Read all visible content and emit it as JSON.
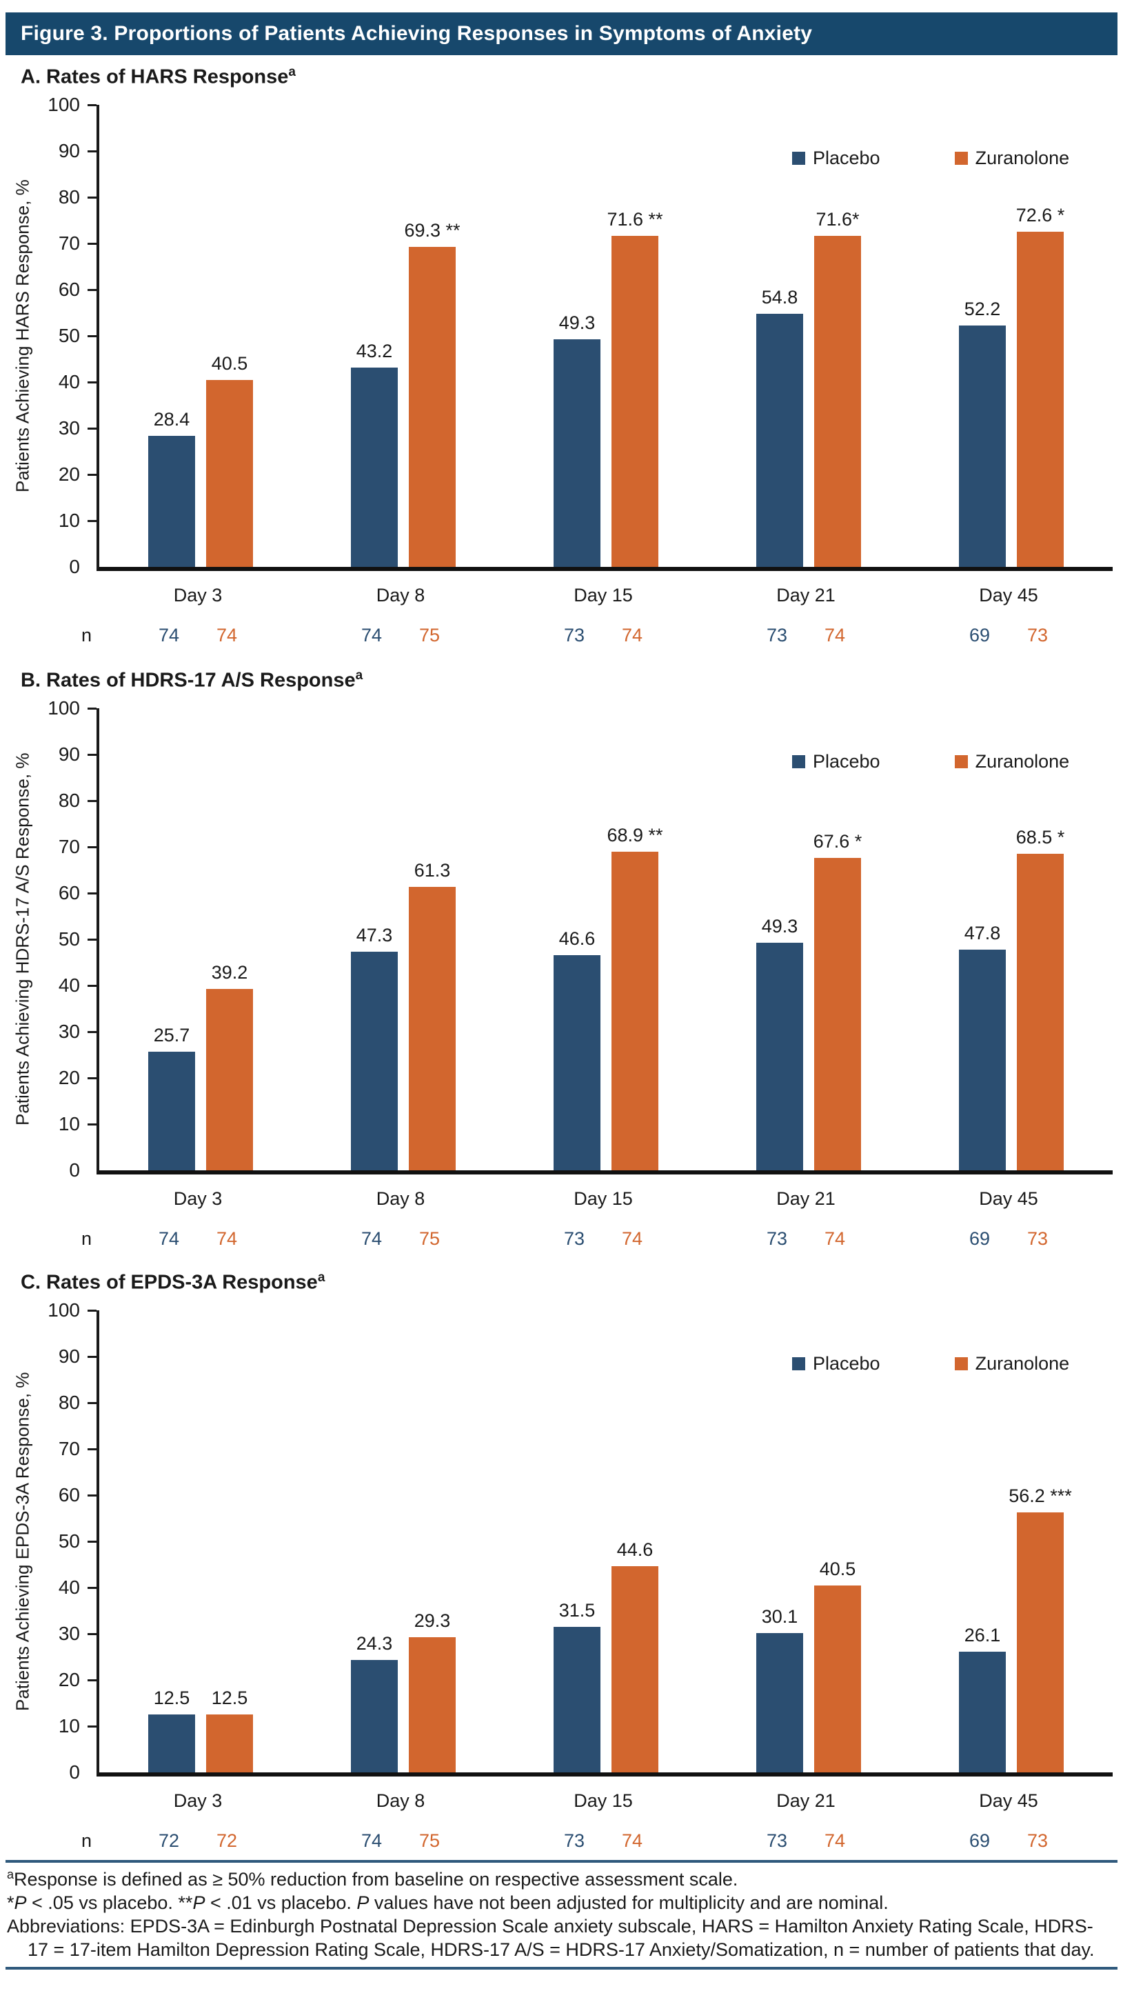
{
  "figure_title": "Figure 3. Proportions of Patients Achieving Responses in Symptoms of Anxiety",
  "colors": {
    "placebo": "#2B4E71",
    "zuranolone": "#D2662E",
    "header_bg": "#17486C",
    "rule_line": "#2F597C",
    "axis": "#1A1A1A"
  },
  "legend": {
    "series1": "Placebo",
    "series2": "Zuranolone"
  },
  "n_row_label": "n",
  "chart_data": [
    {
      "type": "bar",
      "panel_label": "A. Rates of HARS Response",
      "panel_sup": "a",
      "ylabel": "Patients Achieving HARS Response, %",
      "ylim": [
        0,
        100
      ],
      "ytick_step": 10,
      "grid": false,
      "legend_position": "top-right",
      "categories": [
        "Day 3",
        "Day 8",
        "Day 15",
        "Day 21",
        "Day 45"
      ],
      "series": [
        {
          "name": "Placebo",
          "values": [
            28.4,
            43.2,
            49.3,
            54.8,
            52.2
          ],
          "labels": [
            "28.4",
            "43.2",
            "49.3",
            "54.8",
            "52.2"
          ],
          "n": [
            74,
            74,
            73,
            73,
            69
          ]
        },
        {
          "name": "Zuranolone",
          "values": [
            40.5,
            69.3,
            71.6,
            71.6,
            72.6
          ],
          "labels": [
            "40.5",
            "69.3 **",
            "71.6 **",
            "71.6*",
            "72.6 *"
          ],
          "n": [
            74,
            75,
            74,
            74,
            73
          ]
        }
      ]
    },
    {
      "type": "bar",
      "panel_label": "B. Rates of HDRS-17 A/S Response",
      "panel_sup": "a",
      "ylabel": "Patients Achieving HDRS-17 A/S Response, %",
      "ylim": [
        0,
        100
      ],
      "ytick_step": 10,
      "grid": false,
      "legend_position": "top-right",
      "categories": [
        "Day 3",
        "Day 8",
        "Day 15",
        "Day 21",
        "Day 45"
      ],
      "series": [
        {
          "name": "Placebo",
          "values": [
            25.7,
            47.3,
            46.6,
            49.3,
            47.8
          ],
          "labels": [
            "25.7",
            "47.3",
            "46.6",
            "49.3",
            "47.8"
          ],
          "n": [
            74,
            74,
            73,
            73,
            69
          ]
        },
        {
          "name": "Zuranolone",
          "values": [
            39.2,
            61.3,
            68.9,
            67.6,
            68.5
          ],
          "labels": [
            "39.2",
            "61.3",
            "68.9 **",
            "67.6 *",
            "68.5 *"
          ],
          "n": [
            74,
            75,
            74,
            74,
            73
          ]
        }
      ]
    },
    {
      "type": "bar",
      "panel_label": "C. Rates of EPDS-3A Response",
      "panel_sup": "a",
      "ylabel": "Patients Achieving EPDS-3A Response, %",
      "ylim": [
        0,
        100
      ],
      "ytick_step": 10,
      "grid": false,
      "legend_position": "top-right",
      "categories": [
        "Day 3",
        "Day 8",
        "Day 15",
        "Day 21",
        "Day 45"
      ],
      "series": [
        {
          "name": "Placebo",
          "values": [
            12.5,
            24.3,
            31.5,
            30.1,
            26.1
          ],
          "labels": [
            "12.5",
            "24.3",
            "31.5",
            "30.1",
            "26.1"
          ],
          "n": [
            72,
            74,
            73,
            73,
            69
          ]
        },
        {
          "name": "Zuranolone",
          "values": [
            12.5,
            29.3,
            44.6,
            40.5,
            56.2
          ],
          "labels": [
            "12.5",
            "29.3",
            "44.6",
            "40.5",
            "56.2 ***"
          ],
          "n": [
            72,
            75,
            74,
            74,
            73
          ]
        }
      ]
    }
  ],
  "footnotes": {
    "sup": "a",
    "line1": "Response is defined as ≥ 50% reduction from baseline on respective assessment scale.",
    "line2_segments": [
      {
        "text": "*"
      },
      {
        "text": "P",
        "italic": true
      },
      {
        "text": " < .05 vs placebo.   **"
      },
      {
        "text": "P",
        "italic": true
      },
      {
        "text": " < .01 vs placebo. "
      },
      {
        "text": "P",
        "italic": true
      },
      {
        "text": " values have not been adjusted for multiplicity and are nominal."
      }
    ],
    "line3": "Abbreviations: EPDS-3A = Edinburgh Postnatal Depression Scale anxiety subscale, HARS = Hamilton Anxiety Rating Scale, HDRS-17 = 17-item Hamilton Depression Rating Scale, HDRS-17 A/S = HDRS-17 Anxiety/Somatization, n = number of patients that day."
  }
}
